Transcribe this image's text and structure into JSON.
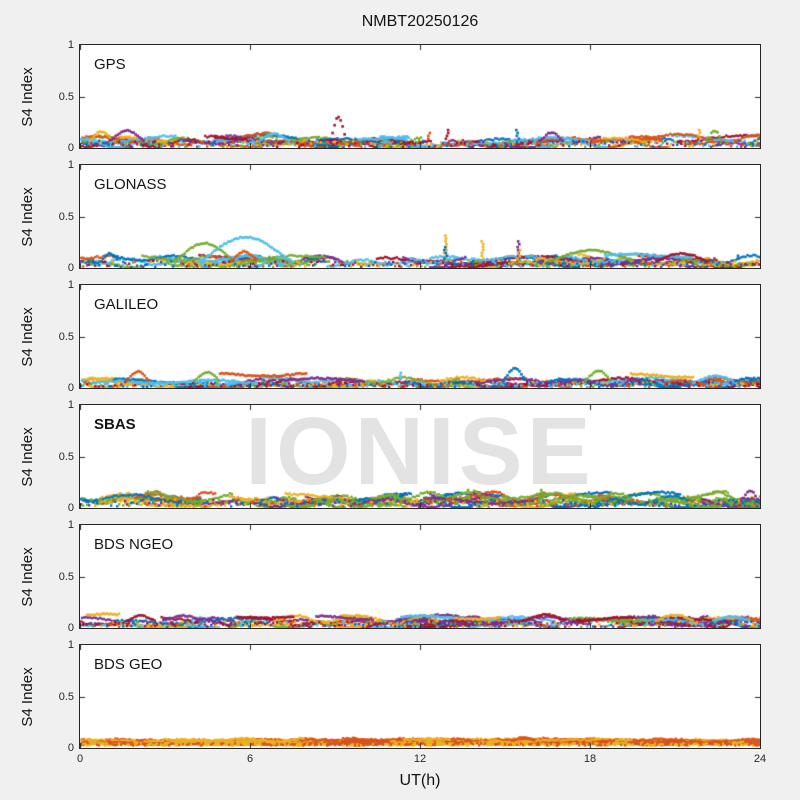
{
  "title": "NMBT20250126",
  "watermark": {
    "text": "IONISE",
    "color": "#e3e3e3",
    "panel": "sbas"
  },
  "axes": {
    "x_label": "UT(h)",
    "x_ticks": [
      0,
      6,
      12,
      18,
      24
    ],
    "x_tick_labels": [
      "0",
      "6",
      "12",
      "18",
      "24"
    ],
    "x_range": [
      0,
      24
    ],
    "y_label": "S4 Index",
    "y_tick_labels": [
      "1",
      "0.5",
      "0"
    ],
    "y_ticks": [
      1,
      0.5,
      0
    ],
    "y_range": [
      0,
      1
    ]
  },
  "colors": {
    "figure_bg": "#f0f0f0",
    "panel_bg": "#ffffff",
    "axis": "#262626",
    "text": "#141414",
    "palette": [
      "#0072BD",
      "#D95319",
      "#EDB120",
      "#7E2F8E",
      "#77AC30",
      "#4DBEEE",
      "#A2142F"
    ]
  },
  "chart_data": {
    "type": "scatter",
    "title": "NMBT20250126",
    "xlabel": "UT(h)",
    "ylabel": "S4 Index",
    "xlim": [
      0,
      24
    ],
    "ylim": [
      0,
      1
    ],
    "grid": false,
    "legend": "none",
    "description": "Six stacked panels of S4 scintillation index vs UT hour; dense multi-satellite scatter bands near S4=0-0.15 with occasional arcs/spikes.",
    "panels": [
      {
        "name": "gps",
        "label": "GPS",
        "label_bold": false,
        "band": [
          0.02,
          0.12
        ],
        "density": 1.1,
        "colors": null,
        "seed": 101,
        "features": [
          {
            "type": "arc",
            "x0": 0.3,
            "x1": 1.1,
            "peak": 0.16,
            "color": "#EDB120"
          },
          {
            "type": "arc",
            "x0": 1.0,
            "x1": 2.2,
            "peak": 0.17,
            "color": "#7E2F8E"
          },
          {
            "type": "arc",
            "x0": 6.3,
            "x1": 7.3,
            "peak": 0.14,
            "color": "#4DBEEE"
          },
          {
            "type": "arc",
            "x0": 8.8,
            "x1": 9.35,
            "peak": 0.3,
            "color": "#A2142F"
          },
          {
            "type": "segment",
            "x0": 9.8,
            "x1": 11.5,
            "level": 0.1,
            "color": "#4DBEEE"
          },
          {
            "type": "spike",
            "x": 12.3,
            "peak": 0.16,
            "color": "#D95319"
          },
          {
            "type": "spike",
            "x": 12.9,
            "peak": 0.2,
            "color": "#A2142F"
          },
          {
            "type": "spike",
            "x": 15.4,
            "peak": 0.2,
            "color": "#0072BD"
          },
          {
            "type": "arc",
            "x0": 16.2,
            "x1": 17.0,
            "peak": 0.15,
            "color": "#7E2F8E"
          },
          {
            "type": "spike",
            "x": 21.8,
            "peak": 0.2,
            "color": "#EDB120"
          },
          {
            "type": "arc",
            "x0": 22.1,
            "x1": 22.6,
            "peak": 0.17,
            "color": "#77AC30"
          }
        ]
      },
      {
        "name": "glonass",
        "label": "GLONASS",
        "label_bold": false,
        "band": [
          0.02,
          0.12
        ],
        "density": 1.1,
        "colors": null,
        "seed": 202,
        "features": [
          {
            "type": "arc",
            "x0": 0.7,
            "x1": 1.3,
            "peak": 0.14,
            "color": "#0072BD"
          },
          {
            "type": "arc",
            "x0": 3.3,
            "x1": 5.4,
            "peak": 0.24,
            "color": "#77AC30"
          },
          {
            "type": "arc",
            "x0": 4.2,
            "x1": 7.4,
            "peak": 0.3,
            "color": "#4DBEEE"
          },
          {
            "type": "arc",
            "x0": 5.3,
            "x1": 6.2,
            "peak": 0.16,
            "color": "#D95319"
          },
          {
            "type": "spike",
            "x": 12.85,
            "peak": 0.33,
            "color": "#EDB120"
          },
          {
            "type": "spike",
            "x": 12.85,
            "peak": 0.22,
            "color": "#0072BD"
          },
          {
            "type": "spike",
            "x": 14.15,
            "peak": 0.26,
            "color": "#EDB120"
          },
          {
            "type": "spike",
            "x": 15.45,
            "peak": 0.28,
            "color": "#7E2F8E"
          },
          {
            "type": "spike",
            "x": 15.45,
            "peak": 0.2,
            "color": "#EDB120"
          },
          {
            "type": "arc",
            "x0": 16.5,
            "x1": 19.5,
            "peak": 0.17,
            "color": "#77AC30"
          },
          {
            "type": "segment",
            "x0": 18.5,
            "x1": 21.6,
            "level": 0.12,
            "color": "#4DBEEE"
          },
          {
            "type": "arc",
            "x0": 20.3,
            "x1": 22.1,
            "peak": 0.14,
            "color": "#A2142F"
          },
          {
            "type": "spike",
            "x": 23.2,
            "peak": 0.14,
            "color": "#0072BD"
          }
        ]
      },
      {
        "name": "galileo",
        "label": "GALILEO",
        "label_bold": false,
        "band": [
          0.015,
          0.1
        ],
        "density": 1.0,
        "colors": [
          "#0072BD",
          "#D95319",
          "#EDB120",
          "#7E2F8E",
          "#77AC30",
          "#4DBEEE",
          "#A2142F",
          "#4DBEEE"
        ],
        "seed": 303,
        "features": [
          {
            "type": "arc",
            "x0": 1.6,
            "x1": 2.4,
            "peak": 0.16,
            "color": "#D95319"
          },
          {
            "type": "segment",
            "x0": 1.8,
            "x1": 6.2,
            "level": 0.06,
            "color": "#4DBEEE"
          },
          {
            "type": "arc",
            "x0": 4.0,
            "x1": 4.9,
            "peak": 0.15,
            "color": "#77AC30"
          },
          {
            "type": "segment",
            "x0": 4.9,
            "x1": 8.0,
            "level": 0.13,
            "color": "#D95319"
          },
          {
            "type": "segment",
            "x0": 7.0,
            "x1": 10.0,
            "level": 0.08,
            "color": "#7E2F8E"
          },
          {
            "type": "spike",
            "x": 11.3,
            "peak": 0.16,
            "color": "#4DBEEE"
          },
          {
            "type": "arc",
            "x0": 14.9,
            "x1": 15.7,
            "peak": 0.19,
            "color": "#0072BD"
          },
          {
            "type": "arc",
            "x0": 17.8,
            "x1": 18.7,
            "peak": 0.17,
            "color": "#77AC30"
          },
          {
            "type": "segment",
            "x0": 19.4,
            "x1": 21.6,
            "level": 0.12,
            "color": "#EDB120"
          },
          {
            "type": "arc",
            "x0": 21.8,
            "x1": 23.0,
            "peak": 0.12,
            "color": "#4DBEEE"
          }
        ]
      },
      {
        "name": "sbas",
        "label": "SBAS",
        "label_bold": true,
        "band": [
          0.03,
          0.14
        ],
        "density": 1.7,
        "colors": [
          "#77AC30",
          "#77AC30",
          "#77AC30",
          "#0072BD",
          "#0072BD",
          "#7E2F8E",
          "#EDB120",
          "#D95319"
        ],
        "seed": 404,
        "features": [
          {
            "type": "spike",
            "x": 13.7,
            "peak": 0.18,
            "color": "#77AC30"
          },
          {
            "type": "spike",
            "x": 16.2,
            "peak": 0.18,
            "color": "#77AC30"
          },
          {
            "type": "arc",
            "x0": 23.3,
            "x1": 23.9,
            "peak": 0.17,
            "color": "#7E2F8E"
          }
        ]
      },
      {
        "name": "bds-ngeo",
        "label": "BDS NGEO",
        "label_bold": false,
        "band": [
          0.02,
          0.11
        ],
        "density": 1.2,
        "colors": [
          "#0072BD",
          "#D95319",
          "#EDB120",
          "#7E2F8E",
          "#77AC30",
          "#4DBEEE",
          "#A2142F",
          "#EDB120",
          "#7E2F8E",
          "#A2142F"
        ],
        "seed": 505,
        "features": [
          {
            "type": "segment",
            "x0": 0.2,
            "x1": 1.4,
            "level": 0.12,
            "color": "#EDB120"
          },
          {
            "type": "arc",
            "x0": 1.6,
            "x1": 2.6,
            "peak": 0.12,
            "color": "#A2142F"
          },
          {
            "type": "arc",
            "x0": 2.9,
            "x1": 4.3,
            "peak": 0.12,
            "color": "#7E2F8E"
          },
          {
            "type": "segment",
            "x0": 5.5,
            "x1": 7.5,
            "level": 0.11,
            "color": "#A2142F"
          },
          {
            "type": "segment",
            "x0": 8.3,
            "x1": 10.3,
            "level": 0.1,
            "color": "#7E2F8E"
          },
          {
            "type": "segment",
            "x0": 11.3,
            "x1": 13.2,
            "level": 0.1,
            "color": "#4DBEEE"
          },
          {
            "type": "segment",
            "x0": 13.2,
            "x1": 14.8,
            "level": 0.1,
            "color": "#EDB120"
          },
          {
            "type": "arc",
            "x0": 15.6,
            "x1": 17.1,
            "peak": 0.13,
            "color": "#A2142F"
          },
          {
            "type": "segment",
            "x0": 17.5,
            "x1": 19.5,
            "level": 0.09,
            "color": "#A2142F"
          },
          {
            "type": "arc",
            "x0": 20.3,
            "x1": 21.6,
            "peak": 0.13,
            "color": "#EDB120"
          },
          {
            "type": "arc",
            "x0": 22.3,
            "x1": 23.6,
            "peak": 0.11,
            "color": "#4DBEEE"
          }
        ]
      },
      {
        "name": "bds-geo",
        "label": "BDS GEO",
        "label_bold": false,
        "band": [
          0.045,
          0.085
        ],
        "density": 2.2,
        "colors": [
          "#EDB120",
          "#D95319",
          "#EDB120",
          "#D95319"
        ],
        "seed": 606,
        "features": [
          {
            "type": "arc",
            "x0": 15.2,
            "x1": 16.0,
            "peak": 0.1,
            "color": "#D95319"
          }
        ]
      }
    ]
  }
}
